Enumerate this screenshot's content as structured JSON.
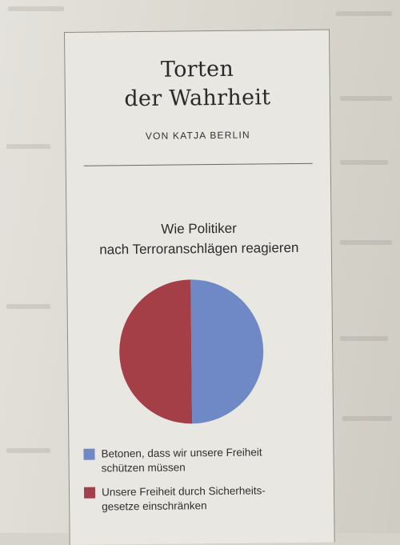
{
  "article": {
    "title_line1": "Torten",
    "title_line2": "der Wahrheit",
    "byline": "VON KATJA BERLIN"
  },
  "chart_data": {
    "type": "pie",
    "title_line1": "Wie Politiker",
    "title_line2": "nach Terroranschlägen reagieren",
    "series": [
      {
        "name": "Betonen, dass wir unsere Freiheit schützen müssen",
        "value": 50,
        "color": "#6f89c6"
      },
      {
        "name": "Unsere Freiheit durch Sicherheits-gesetze einschränken",
        "value": 50,
        "color": "#a43f47"
      }
    ],
    "legend": [
      {
        "line1": "Betonen, dass wir unsere Freiheit",
        "line2": "schützen müssen",
        "color": "#6f89c6"
      },
      {
        "line1": "Unsere Freiheit durch Sicherheits-",
        "line2": "gesetze einschränken",
        "color": "#a43f47"
      }
    ],
    "legend_position": "bottom"
  }
}
